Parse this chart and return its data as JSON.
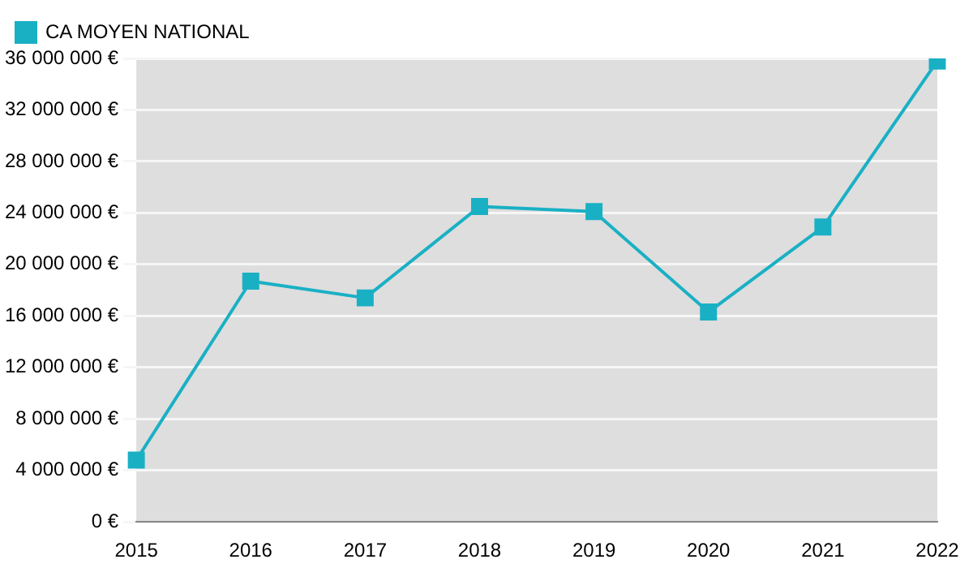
{
  "chart_data": {
    "type": "line",
    "categories": [
      "2015",
      "2016",
      "2017",
      "2018",
      "2019",
      "2020",
      "2021",
      "2022"
    ],
    "series": [
      {
        "name": "CA MOYEN NATIONAL",
        "color": "#1ab0c4",
        "values": [
          4800000,
          18700000,
          17400000,
          24500000,
          24100000,
          16300000,
          22900000,
          35800000
        ]
      }
    ],
    "ylim": [
      0,
      36000000
    ],
    "yticks": [
      {
        "value": 0,
        "label": "0 €"
      },
      {
        "value": 4000000,
        "label": "4 000 000 €"
      },
      {
        "value": 8000000,
        "label": "8 000 000 €"
      },
      {
        "value": 12000000,
        "label": "12 000 000 €"
      },
      {
        "value": 16000000,
        "label": "16 000 000 €"
      },
      {
        "value": 20000000,
        "label": "20 000 000 €"
      },
      {
        "value": 24000000,
        "label": "24 000 000 €"
      },
      {
        "value": 28000000,
        "label": "28 000 000 €"
      },
      {
        "value": 32000000,
        "label": "32 000 000 €"
      },
      {
        "value": 36000000,
        "label": "36 000 000 €"
      }
    ],
    "grid": "y",
    "legend": "top left",
    "marker": "square",
    "line_style": "solid"
  }
}
